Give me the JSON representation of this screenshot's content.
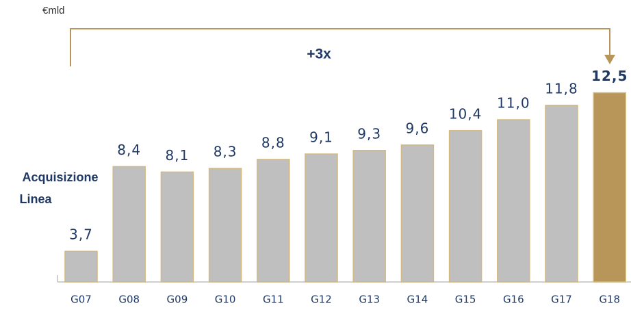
{
  "chart_data": {
    "type": "bar",
    "unit_label": "€mld",
    "annotation": "+3x",
    "side_label": [
      "Acquisizione",
      "Linea"
    ],
    "categories": [
      "G07",
      "G08",
      "G09",
      "G10",
      "G11",
      "G12",
      "G13",
      "G14",
      "G15",
      "G16",
      "G17",
      "G18"
    ],
    "values": [
      3.7,
      8.4,
      8.1,
      8.3,
      8.8,
      9.1,
      9.3,
      9.6,
      10.4,
      11.0,
      11.8,
      12.5
    ],
    "value_labels": [
      "3,7",
      "8,4",
      "8,1",
      "8,3",
      "8,8",
      "9,1",
      "9,3",
      "9,6",
      "10,4",
      "11,0",
      "11,8",
      "12,5"
    ],
    "colors": [
      "#bfbfbf",
      "#bfbfbf",
      "#bfbfbf",
      "#bfbfbf",
      "#bfbfbf",
      "#bfbfbf",
      "#bfbfbf",
      "#bfbfbf",
      "#bfbfbf",
      "#bfbfbf",
      "#bfbfbf",
      "#b8965a"
    ],
    "ylim": [
      2,
      14
    ]
  }
}
